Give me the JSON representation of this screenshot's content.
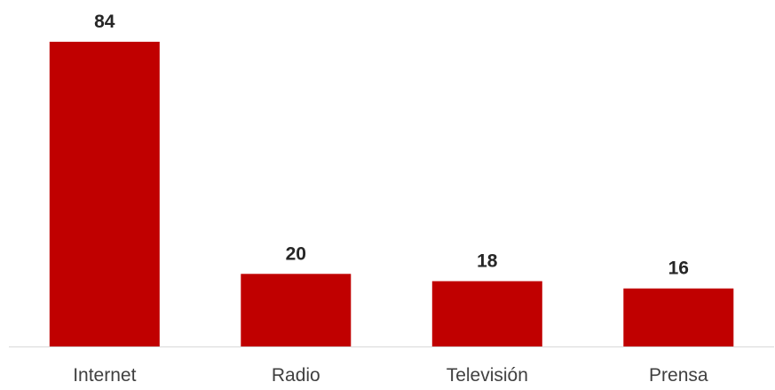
{
  "chart_data": {
    "type": "bar",
    "categories": [
      "Internet",
      "Radio",
      "Televisión",
      "Prensa"
    ],
    "values": [
      84,
      20,
      18,
      16
    ],
    "data_labels": [
      "84",
      "20",
      "18",
      "16"
    ],
    "title": "",
    "xlabel": "",
    "ylabel": "",
    "ylim": [
      0,
      90
    ],
    "grid": false,
    "legend": "none",
    "colors": {
      "bar": "#c00000",
      "axis": "#d9d9d9",
      "value_text": "#262626",
      "category_text": "#404040"
    }
  }
}
